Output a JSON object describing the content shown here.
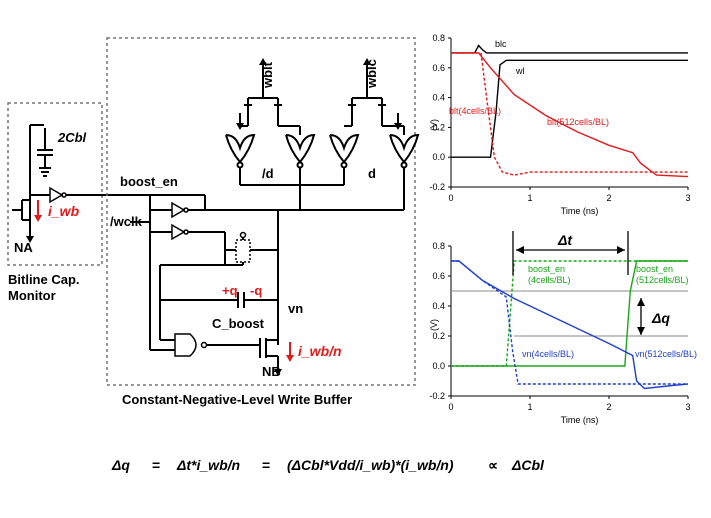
{
  "schematic": {
    "labels": {
      "cap_2cbl": "2Cbl",
      "i_wb": "i_wb",
      "na": "NA",
      "boost_en": "boost_en",
      "wclk": "/wclk",
      "wblt": "wblt",
      "wblc": "wblc",
      "d_bar": "/d",
      "d": "d",
      "plus_q": "+q",
      "minus_q": "-q",
      "vn": "vn",
      "c_boost": "C_boost",
      "i_wb_n": "i_wb/n",
      "nb": "NB"
    },
    "captions": {
      "monitor": "Bitline Cap.\nMonitor",
      "monitor_line1": "Bitline Cap.",
      "monitor_line2": "Monitor",
      "write_buffer": "Constant-Negative-Level Write Buffer"
    }
  },
  "chart_data": [
    {
      "type": "line",
      "xlabel": "Time (ns)",
      "ylabel": "(V)",
      "xlim": [
        0,
        3
      ],
      "ylim": [
        -0.2,
        0.8
      ],
      "xticks": [
        "0",
        "1",
        "2",
        "3"
      ],
      "yticks": [
        "-0.2",
        "0.0",
        "0.2",
        "0.4",
        "0.6",
        "0.8"
      ],
      "series": [
        {
          "name": "blc",
          "color": "#000000",
          "style": "solid",
          "x": [
            0,
            0.3,
            0.35,
            0.4,
            0.45,
            3
          ],
          "y": [
            0.7,
            0.7,
            0.75,
            0.72,
            0.7,
            0.7
          ]
        },
        {
          "name": "wl",
          "color": "#000000",
          "style": "solid",
          "x": [
            0,
            0.5,
            0.57,
            0.62,
            0.7,
            3
          ],
          "y": [
            0,
            0,
            0.3,
            0.62,
            0.65,
            0.65
          ]
        },
        {
          "name": "blt(4cells/BL)",
          "color": "#e31a1c",
          "style": "dashed",
          "x": [
            0,
            0.38,
            0.45,
            0.55,
            0.65,
            0.8,
            1.0,
            3
          ],
          "y": [
            0.7,
            0.7,
            0.4,
            0.0,
            -0.1,
            -0.12,
            -0.1,
            -0.1
          ]
        },
        {
          "name": "blt(512cells/BL)",
          "color": "#e31a1c",
          "style": "solid",
          "x": [
            0,
            0.35,
            0.5,
            0.8,
            1.2,
            1.6,
            2.0,
            2.3,
            2.4,
            2.6,
            3
          ],
          "y": [
            0.7,
            0.7,
            0.6,
            0.42,
            0.28,
            0.17,
            0.08,
            0.03,
            -0.04,
            -0.12,
            -0.13
          ]
        }
      ]
    },
    {
      "type": "line",
      "xlabel": "Time (ns)",
      "ylabel": "(V)",
      "xlim": [
        0,
        3
      ],
      "ylim": [
        -0.2,
        0.8
      ],
      "xticks": [
        "0",
        "1",
        "2",
        "3"
      ],
      "yticks": [
        "-0.2",
        "0.0",
        "0.2",
        "0.4",
        "0.6",
        "0.8"
      ],
      "series": [
        {
          "name": "boost_en\n(4cells/BL)",
          "color": "#1aa61a",
          "style": "dashed",
          "x": [
            0,
            0.7,
            0.75,
            0.8,
            3
          ],
          "y": [
            0,
            0,
            0.35,
            0.7,
            0.7
          ]
        },
        {
          "name": "boost_en\n(512cells/BL)",
          "color": "#1aa61a",
          "style": "solid",
          "x": [
            0,
            2.2,
            2.27,
            2.35,
            3
          ],
          "y": [
            0,
            0,
            0.5,
            0.7,
            0.7
          ]
        },
        {
          "name": "vn(4cells/BL)",
          "color": "#1f3fcf",
          "style": "dashed",
          "x": [
            0,
            0.1,
            0.4,
            0.7,
            0.78,
            0.85,
            1.0,
            3
          ],
          "y": [
            0.7,
            0.7,
            0.57,
            0.46,
            0.1,
            -0.12,
            -0.12,
            -0.12
          ]
        },
        {
          "name": "vn(512cells/BL)",
          "color": "#1f3fcf",
          "style": "solid",
          "x": [
            0,
            0.1,
            0.4,
            0.8,
            1.2,
            1.6,
            2.0,
            2.3,
            2.35,
            2.45,
            2.8,
            3
          ],
          "y": [
            0.7,
            0.7,
            0.57,
            0.45,
            0.35,
            0.25,
            0.15,
            0.07,
            -0.1,
            -0.15,
            -0.13,
            -0.12
          ]
        }
      ],
      "annotations": {
        "delta_t": "Δt",
        "delta_q": "Δq",
        "boost_en_4": "boost_en\n(4cells/BL)",
        "boost_en_512": "boost_en\n(512cells/BL)",
        "vn_4": "vn(4cells/BL)",
        "vn_512": "vn(512cells/BL)"
      }
    }
  ],
  "equation": "Δq  =  Δt*i_wb/n  =  (ΔCbl*Vdd/i_wb)*(i_wb/n)  ∝  ΔCbl",
  "equation_parts": {
    "p1": "Δq",
    "p2": "=",
    "p3": "Δt*i_wb/n",
    "p4": "=",
    "p5": "(ΔCbl*Vdd/i_wb)*(i_wb/n)",
    "p6": "∝",
    "p7": "ΔCbl"
  }
}
